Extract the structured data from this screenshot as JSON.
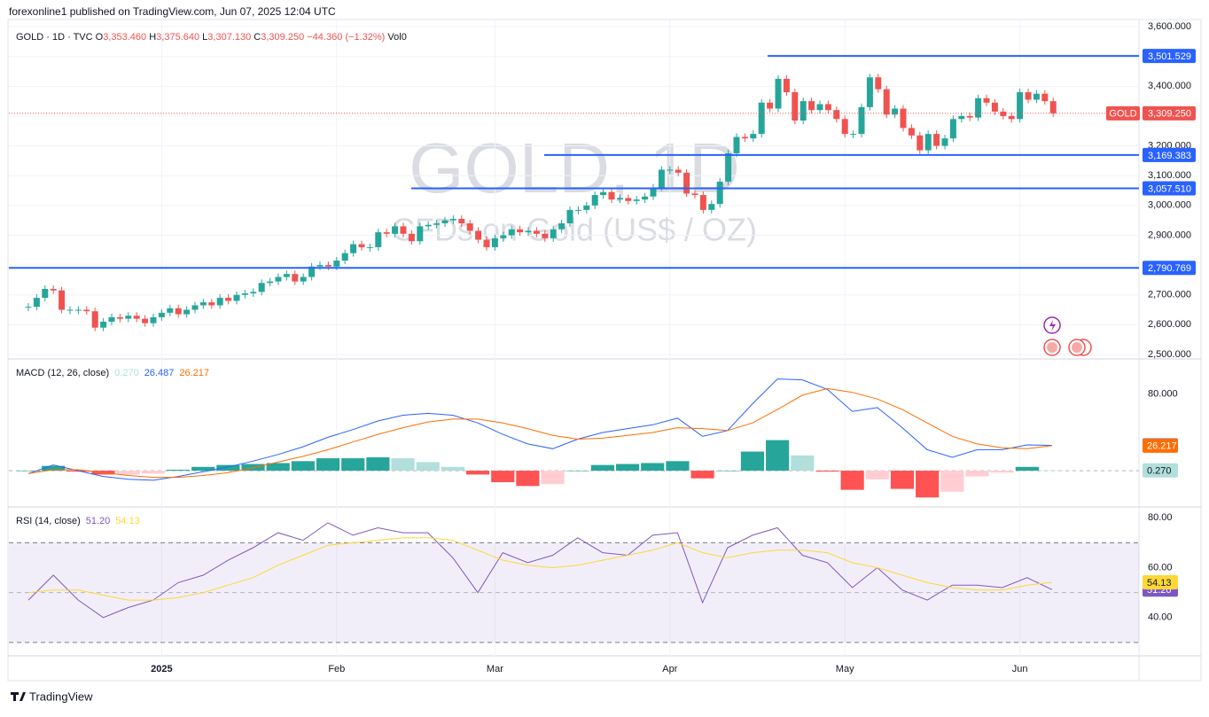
{
  "header": {
    "publisher": "forexonline1 published on TradingView.com, Jun 07, 2025 12:04 UTC",
    "brand": "TradingView"
  },
  "chart_data": [
    {
      "type": "candlestick",
      "title": "GOLD · 1D · TVC",
      "legend": [
        {
          "key": "O",
          "value": 3353.46,
          "label": "3,353.460"
        },
        {
          "key": "H",
          "value": 3375.64,
          "label": "3,375.640"
        },
        {
          "key": "L",
          "value": 3307.13,
          "label": "3,307.130"
        },
        {
          "key": "C",
          "value": 3309.25,
          "label": "3,309.250"
        },
        {
          "key": "",
          "value": -44.36,
          "label": "−44.360"
        },
        {
          "key": "",
          "value": -1.32,
          "label": "(−1.32%)"
        }
      ],
      "volume": "Vol0",
      "watermark": [
        "GOLD, 1D",
        "CFDs on Gold (US$ / OZ)"
      ],
      "up_color": "#26a69a",
      "down_color": "#ef5350",
      "categories": [
        null,
        null,
        null,
        null,
        null,
        null,
        null,
        null,
        null,
        null,
        null,
        null,
        null,
        null,
        null,
        null,
        "2025",
        null,
        null,
        null,
        null,
        null,
        null,
        null,
        null,
        null,
        null,
        null,
        null,
        null,
        null,
        null,
        null,
        null,
        null,
        null,
        null,
        "Feb",
        null,
        null,
        null,
        null,
        null,
        null,
        null,
        null,
        null,
        null,
        null,
        null,
        null,
        null,
        null,
        null,
        null,
        null,
        "Mar",
        null,
        null,
        null,
        null,
        null,
        null,
        null,
        null,
        null,
        null,
        null,
        null,
        null,
        null,
        null,
        null,
        null,
        null,
        null,
        null,
        "Apr",
        null,
        null,
        null,
        null,
        null,
        null,
        null,
        null,
        null,
        null,
        null,
        null,
        null,
        null,
        null,
        null,
        null,
        null,
        null,
        null,
        "May",
        null,
        null,
        null,
        null,
        null,
        null,
        null,
        null,
        null,
        null,
        null,
        null,
        null,
        null,
        null,
        null,
        null,
        null,
        null,
        null,
        "Jun",
        null,
        null,
        null,
        null
      ],
      "values": [
        2660,
        2690,
        2720,
        2715,
        2650,
        2650,
        2650,
        2645,
        2590,
        2610,
        2625,
        2620,
        2630,
        2620,
        2605,
        2625,
        2640,
        2655,
        2635,
        2650,
        2665,
        2675,
        2665,
        2690,
        2680,
        2700,
        2705,
        2710,
        2740,
        2745,
        2760,
        2770,
        2745,
        2760,
        2795,
        2800,
        2795,
        2815,
        2840,
        2870,
        2860,
        2860,
        2910,
        2905,
        2930,
        2905,
        2880,
        2930,
        2935,
        2940,
        2950,
        2955,
        2940,
        2915,
        2885,
        2860,
        2890,
        2900,
        2920,
        2910,
        2915,
        2905,
        2890,
        2920,
        2940,
        2985,
        2985,
        3000,
        3035,
        3045,
        3020,
        3025,
        3015,
        3020,
        3030,
        3060,
        3120,
        3120,
        3110,
        3040,
        3035,
        2985,
        3005,
        3080,
        3175,
        3230,
        3225,
        3240,
        3345,
        3325,
        3425,
        3380,
        3285,
        3350,
        3320,
        3340,
        3320,
        3290,
        3240,
        3240,
        3330,
        3430,
        3390,
        3305,
        3325,
        3260,
        3235,
        3185,
        3240,
        3200,
        3225,
        3290,
        3300,
        3295,
        3360,
        3345,
        3315,
        3300,
        3290,
        3380,
        3355,
        3375,
        3350,
        3309.25
      ],
      "ylim": [
        2488,
        3624
      ],
      "yticks": [
        {
          "value": 2500,
          "label": "2,500.000"
        },
        {
          "value": 2600,
          "label": "2,600.000"
        },
        {
          "value": 2700,
          "label": "2,700.000"
        },
        {
          "value": 2800,
          "label": "2,800.000"
        },
        {
          "value": 2900,
          "label": "2,900.000"
        },
        {
          "value": 3000,
          "label": "3,000.000"
        },
        {
          "value": 3100,
          "label": "3,100.000"
        },
        {
          "value": 3200,
          "label": "3,200.000"
        },
        {
          "value": 3300,
          "label": "3,300.000"
        },
        {
          "value": 3400,
          "label": "3,400.000"
        },
        {
          "value": 3500,
          "label": "3,500.000"
        },
        {
          "value": 3600,
          "label": "3,600.000"
        }
      ],
      "levels": [
        {
          "value": 3501.529,
          "label": "3,501.529"
        },
        {
          "value": 3169.383,
          "label": "3,169.383"
        },
        {
          "value": 3057.51,
          "label": "3,057.510"
        },
        {
          "value": 2790.769,
          "label": "2,790.769"
        }
      ],
      "level_color": "#2962ff",
      "last_price": {
        "name": "GOLD",
        "value": 3309.25,
        "label": "3,309.250"
      }
    },
    {
      "type": "macd",
      "title": "MACD (12, 26, close)",
      "ylim": [
        -37,
        116
      ],
      "yticks": [
        {
          "value": 80,
          "label": "80.000"
        }
      ],
      "series": [
        {
          "color": "#26a69a",
          "style": "histogram",
          "last_label": "0.270",
          "values": [
            0,
            5,
            -1,
            -4,
            -4,
            -3,
            1,
            4,
            6,
            7,
            8,
            10,
            13,
            13,
            14,
            13,
            9,
            4,
            -4,
            -12,
            -16,
            -14,
            0,
            6,
            7,
            8,
            10,
            -8,
            0,
            20,
            32,
            16,
            -1,
            -20,
            -9,
            -19,
            -28,
            -22,
            -6,
            -2,
            4,
            0.27
          ]
        },
        {
          "color": "#2962ff",
          "style": "line",
          "last_label": "26.487",
          "values": [
            -3,
            6,
            0,
            -6,
            -9,
            -10,
            -6,
            -1,
            4,
            10,
            17,
            25,
            35,
            43,
            52,
            58,
            60,
            58,
            50,
            38,
            28,
            23,
            33,
            40,
            44,
            48,
            55,
            36,
            42,
            70,
            96,
            95,
            85,
            62,
            66,
            45,
            22,
            14,
            22,
            22,
            27,
            26.487
          ]
        },
        {
          "color": "#ff6d00",
          "style": "line",
          "last_label": "26.217",
          "values": [
            -3,
            1,
            1,
            -2,
            -5,
            -7,
            -7,
            -5,
            -2,
            3,
            9,
            15,
            22,
            30,
            38,
            45,
            51,
            54,
            54,
            50,
            44,
            37,
            33,
            34,
            37,
            40,
            45,
            44,
            42,
            50,
            64,
            79,
            86,
            82,
            75,
            64,
            50,
            36,
            28,
            24,
            23,
            26.217
          ]
        }
      ]
    },
    {
      "type": "rsi",
      "title": "RSI (14, close)",
      "ylim": [
        25,
        84
      ],
      "yticks": [
        {
          "value": 40,
          "label": "40.00"
        },
        {
          "value": 60,
          "label": "60.00"
        },
        {
          "value": 80,
          "label": "80.00"
        }
      ],
      "bands": [
        30,
        70
      ],
      "series": [
        {
          "color": "#7e57c2",
          "style": "line",
          "last_label": "51.20",
          "values": [
            47,
            57,
            47,
            40,
            44,
            47,
            54,
            57,
            63,
            68,
            74,
            71,
            78,
            73,
            76,
            74,
            74,
            64,
            50,
            66,
            62,
            65,
            72,
            66,
            65,
            73,
            74,
            46,
            68,
            73,
            76,
            65,
            62,
            52,
            60,
            51,
            47,
            53,
            53,
            52,
            56,
            51.2
          ]
        },
        {
          "color": "#fdd835",
          "style": "line",
          "last_label": "54.13",
          "values": [
            50,
            51,
            51,
            49,
            47,
            47,
            48,
            50,
            53,
            56,
            61,
            65,
            69,
            70,
            71,
            72,
            72,
            71,
            67,
            63,
            61,
            60,
            61,
            63,
            65,
            67,
            70,
            66,
            64,
            66,
            67,
            67,
            66,
            62,
            60,
            57,
            54,
            52,
            51,
            51,
            53,
            54.13
          ]
        }
      ]
    }
  ]
}
